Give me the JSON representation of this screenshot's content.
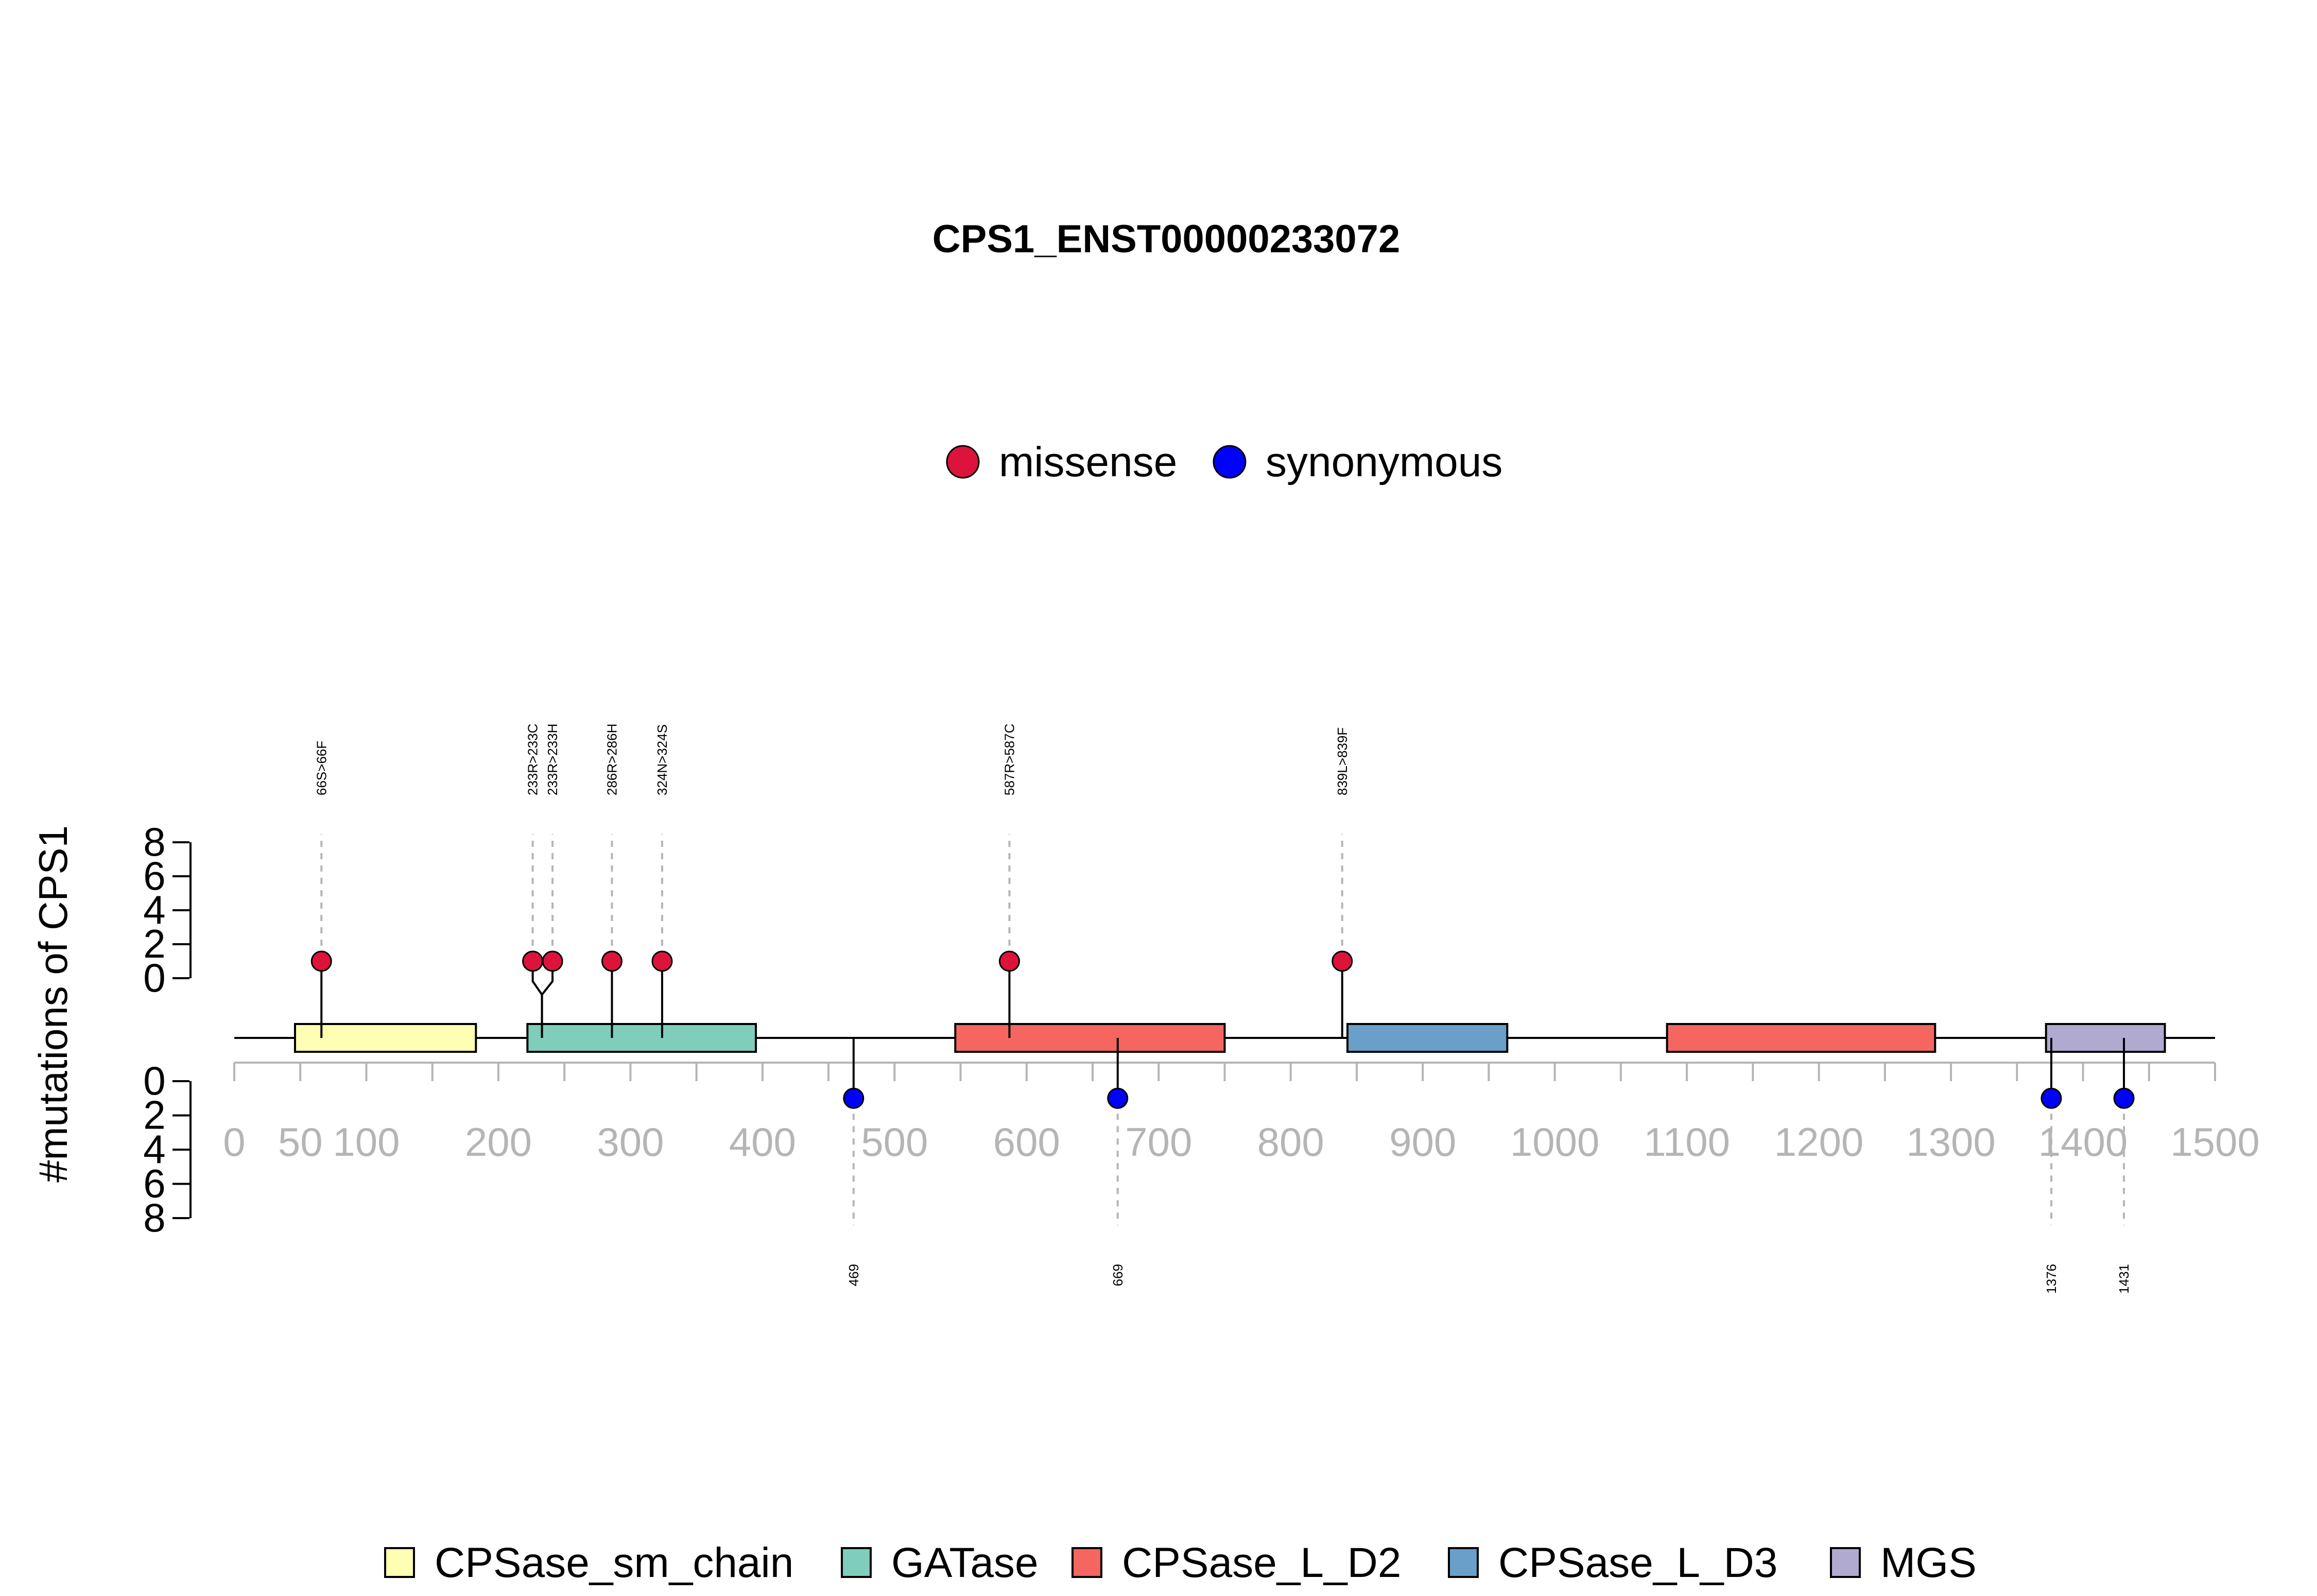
{
  "chart_data": {
    "type": "lollipop",
    "title": "CPS1_ENST00000233072",
    "ylabel": "#mutations of CPS1",
    "protein_length": 1500,
    "x_ticks": [
      0,
      50,
      100,
      150,
      200,
      250,
      300,
      350,
      400,
      450,
      500,
      550,
      600,
      650,
      700,
      750,
      800,
      850,
      900,
      950,
      1000,
      1050,
      1100,
      1150,
      1200,
      1250,
      1300,
      1350,
      1400,
      1450,
      1500
    ],
    "x_tick_labels": [
      "0",
      "50",
      "100",
      "200",
      "300",
      "400",
      "500",
      "600",
      "700",
      "800",
      "900",
      "1000",
      "1100",
      "1200",
      "1300",
      "1400",
      "1500"
    ],
    "x_tick_label_positions": [
      0,
      50,
      100,
      200,
      300,
      400,
      500,
      600,
      700,
      800,
      900,
      1000,
      1100,
      1200,
      1300,
      1400,
      1500
    ],
    "y_ticks": [
      0,
      2,
      4,
      6,
      8
    ],
    "y_tick_labels": [
      "0",
      "2",
      "4",
      "6",
      "8"
    ],
    "ylim": [
      0,
      8
    ],
    "legend_types": [
      {
        "name": "missense",
        "color": "#DC143C"
      },
      {
        "name": "synonymous",
        "color": "#0000FF"
      }
    ],
    "domains": [
      {
        "name": "CPSase_sm_chain",
        "start": 46,
        "end": 183,
        "color": "#FFFFB3"
      },
      {
        "name": "GATase",
        "start": 222,
        "end": 395,
        "color": "#7FCDBB"
      },
      {
        "name": "CPSase_L_D2",
        "start": 546,
        "end": 750,
        "color": "#F4665F"
      },
      {
        "name": "CPSase_L_D3",
        "start": 843,
        "end": 964,
        "color": "#6A9FC9"
      },
      {
        "name": "CPSase_L_D2",
        "start": 1085,
        "end": 1288,
        "color": "#F4665F"
      },
      {
        "name": "MGS",
        "start": 1372,
        "end": 1462,
        "color": "#B1AAD0"
      }
    ],
    "legend_domains": [
      {
        "name": "CPSase_sm_chain",
        "color": "#FFFFB3"
      },
      {
        "name": "GATase",
        "color": "#7FCDBB"
      },
      {
        "name": "CPSase_L_D2",
        "color": "#F4665F"
      },
      {
        "name": "CPSase_L_D3",
        "color": "#6A9FC9"
      },
      {
        "name": "MGS",
        "color": "#B1AAD0"
      }
    ],
    "mutations_top": [
      {
        "label": "66S>66F",
        "position": 66,
        "count": 1,
        "type": "missense",
        "display_pos": 66
      },
      {
        "label": "233R>233C",
        "position": 233,
        "count": 1,
        "type": "missense",
        "display_pos": 226
      },
      {
        "label": "233R>233H",
        "position": 233,
        "count": 1,
        "type": "missense",
        "display_pos": 241
      },
      {
        "label": "286R>286H",
        "position": 286,
        "count": 1,
        "type": "missense",
        "display_pos": 286
      },
      {
        "label": "324N>324S",
        "position": 324,
        "count": 1,
        "type": "missense",
        "display_pos": 324
      },
      {
        "label": "587R>587C",
        "position": 587,
        "count": 1,
        "type": "missense",
        "display_pos": 587
      },
      {
        "label": "839L>839F",
        "position": 839,
        "count": 1,
        "type": "missense",
        "display_pos": 839
      }
    ],
    "mutations_bottom": [
      {
        "label": "469",
        "position": 469,
        "count": 1,
        "type": "synonymous"
      },
      {
        "label": "669",
        "position": 669,
        "count": 1,
        "type": "synonymous"
      },
      {
        "label": "1376",
        "position": 1376,
        "count": 1,
        "type": "synonymous"
      },
      {
        "label": "1431",
        "position": 1431,
        "count": 1,
        "type": "synonymous"
      }
    ]
  }
}
